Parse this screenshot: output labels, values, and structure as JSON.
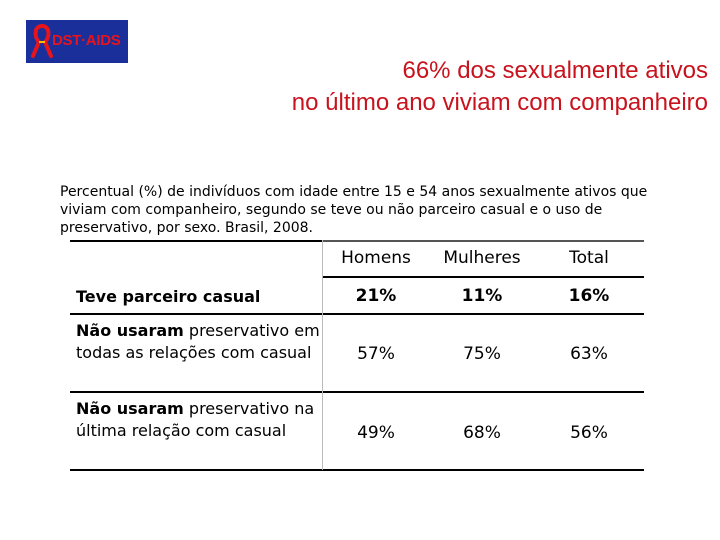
{
  "logo": {
    "text": "DST·AIDS",
    "icon": "red-ribbon-icon"
  },
  "title": {
    "line1": "66% dos sexualmente ativos",
    "line2": "no último ano viviam com companheiro"
  },
  "caption": "Percentual (%) de indivíduos com idade entre 15 e 54 anos sexualmente ativos que viviam com companheiro, segundo se teve ou não parceiro casual e o uso de preservativo, por sexo. Brasil, 2008.",
  "table": {
    "headers": [
      "Homens",
      "Mulheres",
      "Total"
    ],
    "rows": [
      {
        "label_bold": "Teve parceiro casual",
        "label_rest": "",
        "values": [
          "21%",
          "11%",
          "16%"
        ]
      },
      {
        "label_bold": "Não usaram",
        "label_rest": " preservativo em todas as relações com casual",
        "values": [
          "57%",
          "75%",
          "63%"
        ]
      },
      {
        "label_bold": "Não usaram",
        "label_rest": " preservativo na última relação com casual",
        "values": [
          "49%",
          "68%",
          "56%"
        ]
      }
    ]
  },
  "colors": {
    "title": "#c8121d",
    "logo_bg": "#1a2f9a",
    "logo_text": "#e8141b"
  }
}
